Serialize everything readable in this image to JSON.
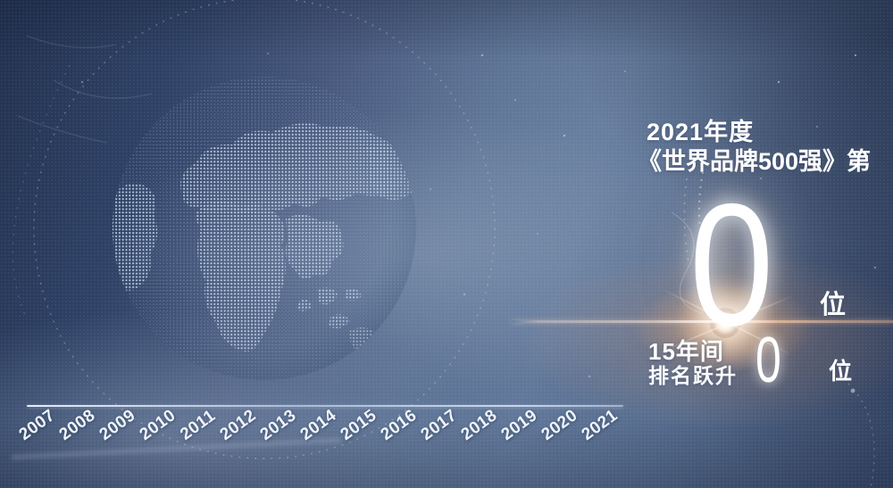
{
  "slide": {
    "heading_line1": "2021年度",
    "heading_line2": "《世界品牌500强》第",
    "rank": {
      "value": "0",
      "unit": "位"
    },
    "jump": {
      "period": "15年间",
      "action": "排名跃升",
      "value": "0",
      "unit": "位"
    }
  },
  "timeline": {
    "years": [
      "2007",
      "2008",
      "2009",
      "2010",
      "2011",
      "2012",
      "2013",
      "2014",
      "2015",
      "2016",
      "2017",
      "2018",
      "2019",
      "2020",
      "2021"
    ]
  },
  "globe": {
    "name": "dotted-world-globe"
  },
  "colors": {
    "bg_dark": "#22314f",
    "bg_mid": "#5d7394",
    "continent_dots": "#c8d9ec",
    "ocean_dots": "#8ba3c2",
    "flare_warm": "#ffbe82",
    "axis": "#dce8f6",
    "text": "#ffffff"
  },
  "chart_data": {
    "type": "line",
    "title": "2021年度《世界品牌500强》第 0 位 — 15年间排名跃升 0 位",
    "categories": [
      "2007",
      "2008",
      "2009",
      "2010",
      "2011",
      "2012",
      "2013",
      "2014",
      "2015",
      "2016",
      "2017",
      "2018",
      "2019",
      "2020",
      "2021"
    ],
    "series": [],
    "xlabel": "",
    "ylabel": "",
    "legend": "none",
    "grid": "off",
    "axis": {
      "x_tick_rotation": -36,
      "x_axis_only": true
    },
    "annotations": [
      "2021年度",
      "《世界品牌500强》第",
      "0 位",
      "15年间",
      "排名跃升",
      "0 位"
    ],
    "notes": "Animation frame: only the x-axis (2007-2021) is drawn; both rank counters currently display 0."
  }
}
